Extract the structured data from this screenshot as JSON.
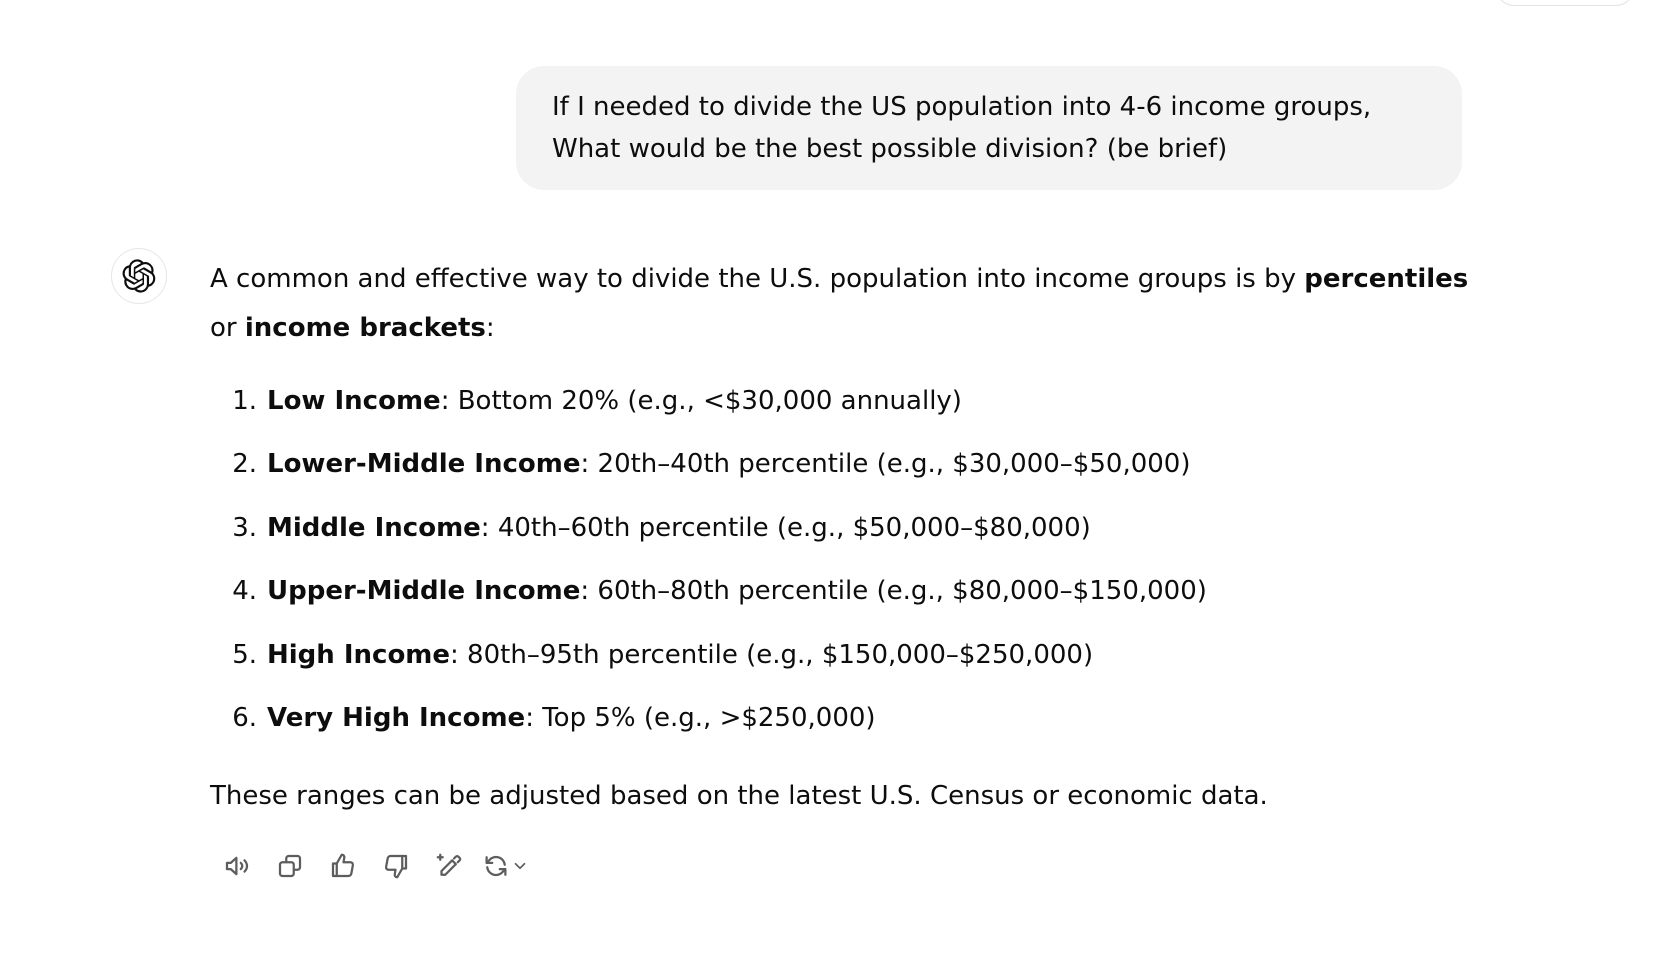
{
  "user_message": {
    "text": "If I needed to divide the US population into 4-6 income groups, What would be the best possible division? (be brief)"
  },
  "assistant_message": {
    "intro_part1": "A common and effective way to divide the U.S. population into income groups is by ",
    "intro_bold1": "percentiles",
    "intro_part2": " or ",
    "intro_bold2": "income brackets",
    "intro_part3": ":",
    "items": [
      {
        "num": "1.",
        "title": "Low Income",
        "desc": ": Bottom 20% (e.g., <$30,000 annually)"
      },
      {
        "num": "2.",
        "title": "Lower-Middle Income",
        "desc": ": 20th–40th percentile (e.g., $30,000–$50,000)"
      },
      {
        "num": "3.",
        "title": "Middle Income",
        "desc": ": 40th–60th percentile (e.g., $50,000–$80,000)"
      },
      {
        "num": "4.",
        "title": "Upper-Middle Income",
        "desc": ": 60th–80th percentile (e.g., $80,000–$150,000)"
      },
      {
        "num": "5.",
        "title": "High Income",
        "desc": ": 80th–95th percentile (e.g., $150,000–$250,000)"
      },
      {
        "num": "6.",
        "title": "Very High Income",
        "desc": ": Top 5% (e.g., >$250,000)"
      }
    ],
    "outro": "These ranges can be adjusted based on the latest U.S. Census or economic data."
  },
  "actions": {
    "read_aloud_icon": "speaker-icon",
    "copy_icon": "copy-icon",
    "good_icon": "thumbs-up-icon",
    "bad_icon": "thumbs-down-icon",
    "edit_icon": "edit-canvas-icon",
    "regenerate_icon": "regenerate-icon",
    "dropdown_icon": "chevron-down-icon"
  },
  "colors": {
    "bubble_bg": "#f3f3f3",
    "text": "#0d0d0d",
    "icon": "#5d5d5d"
  }
}
